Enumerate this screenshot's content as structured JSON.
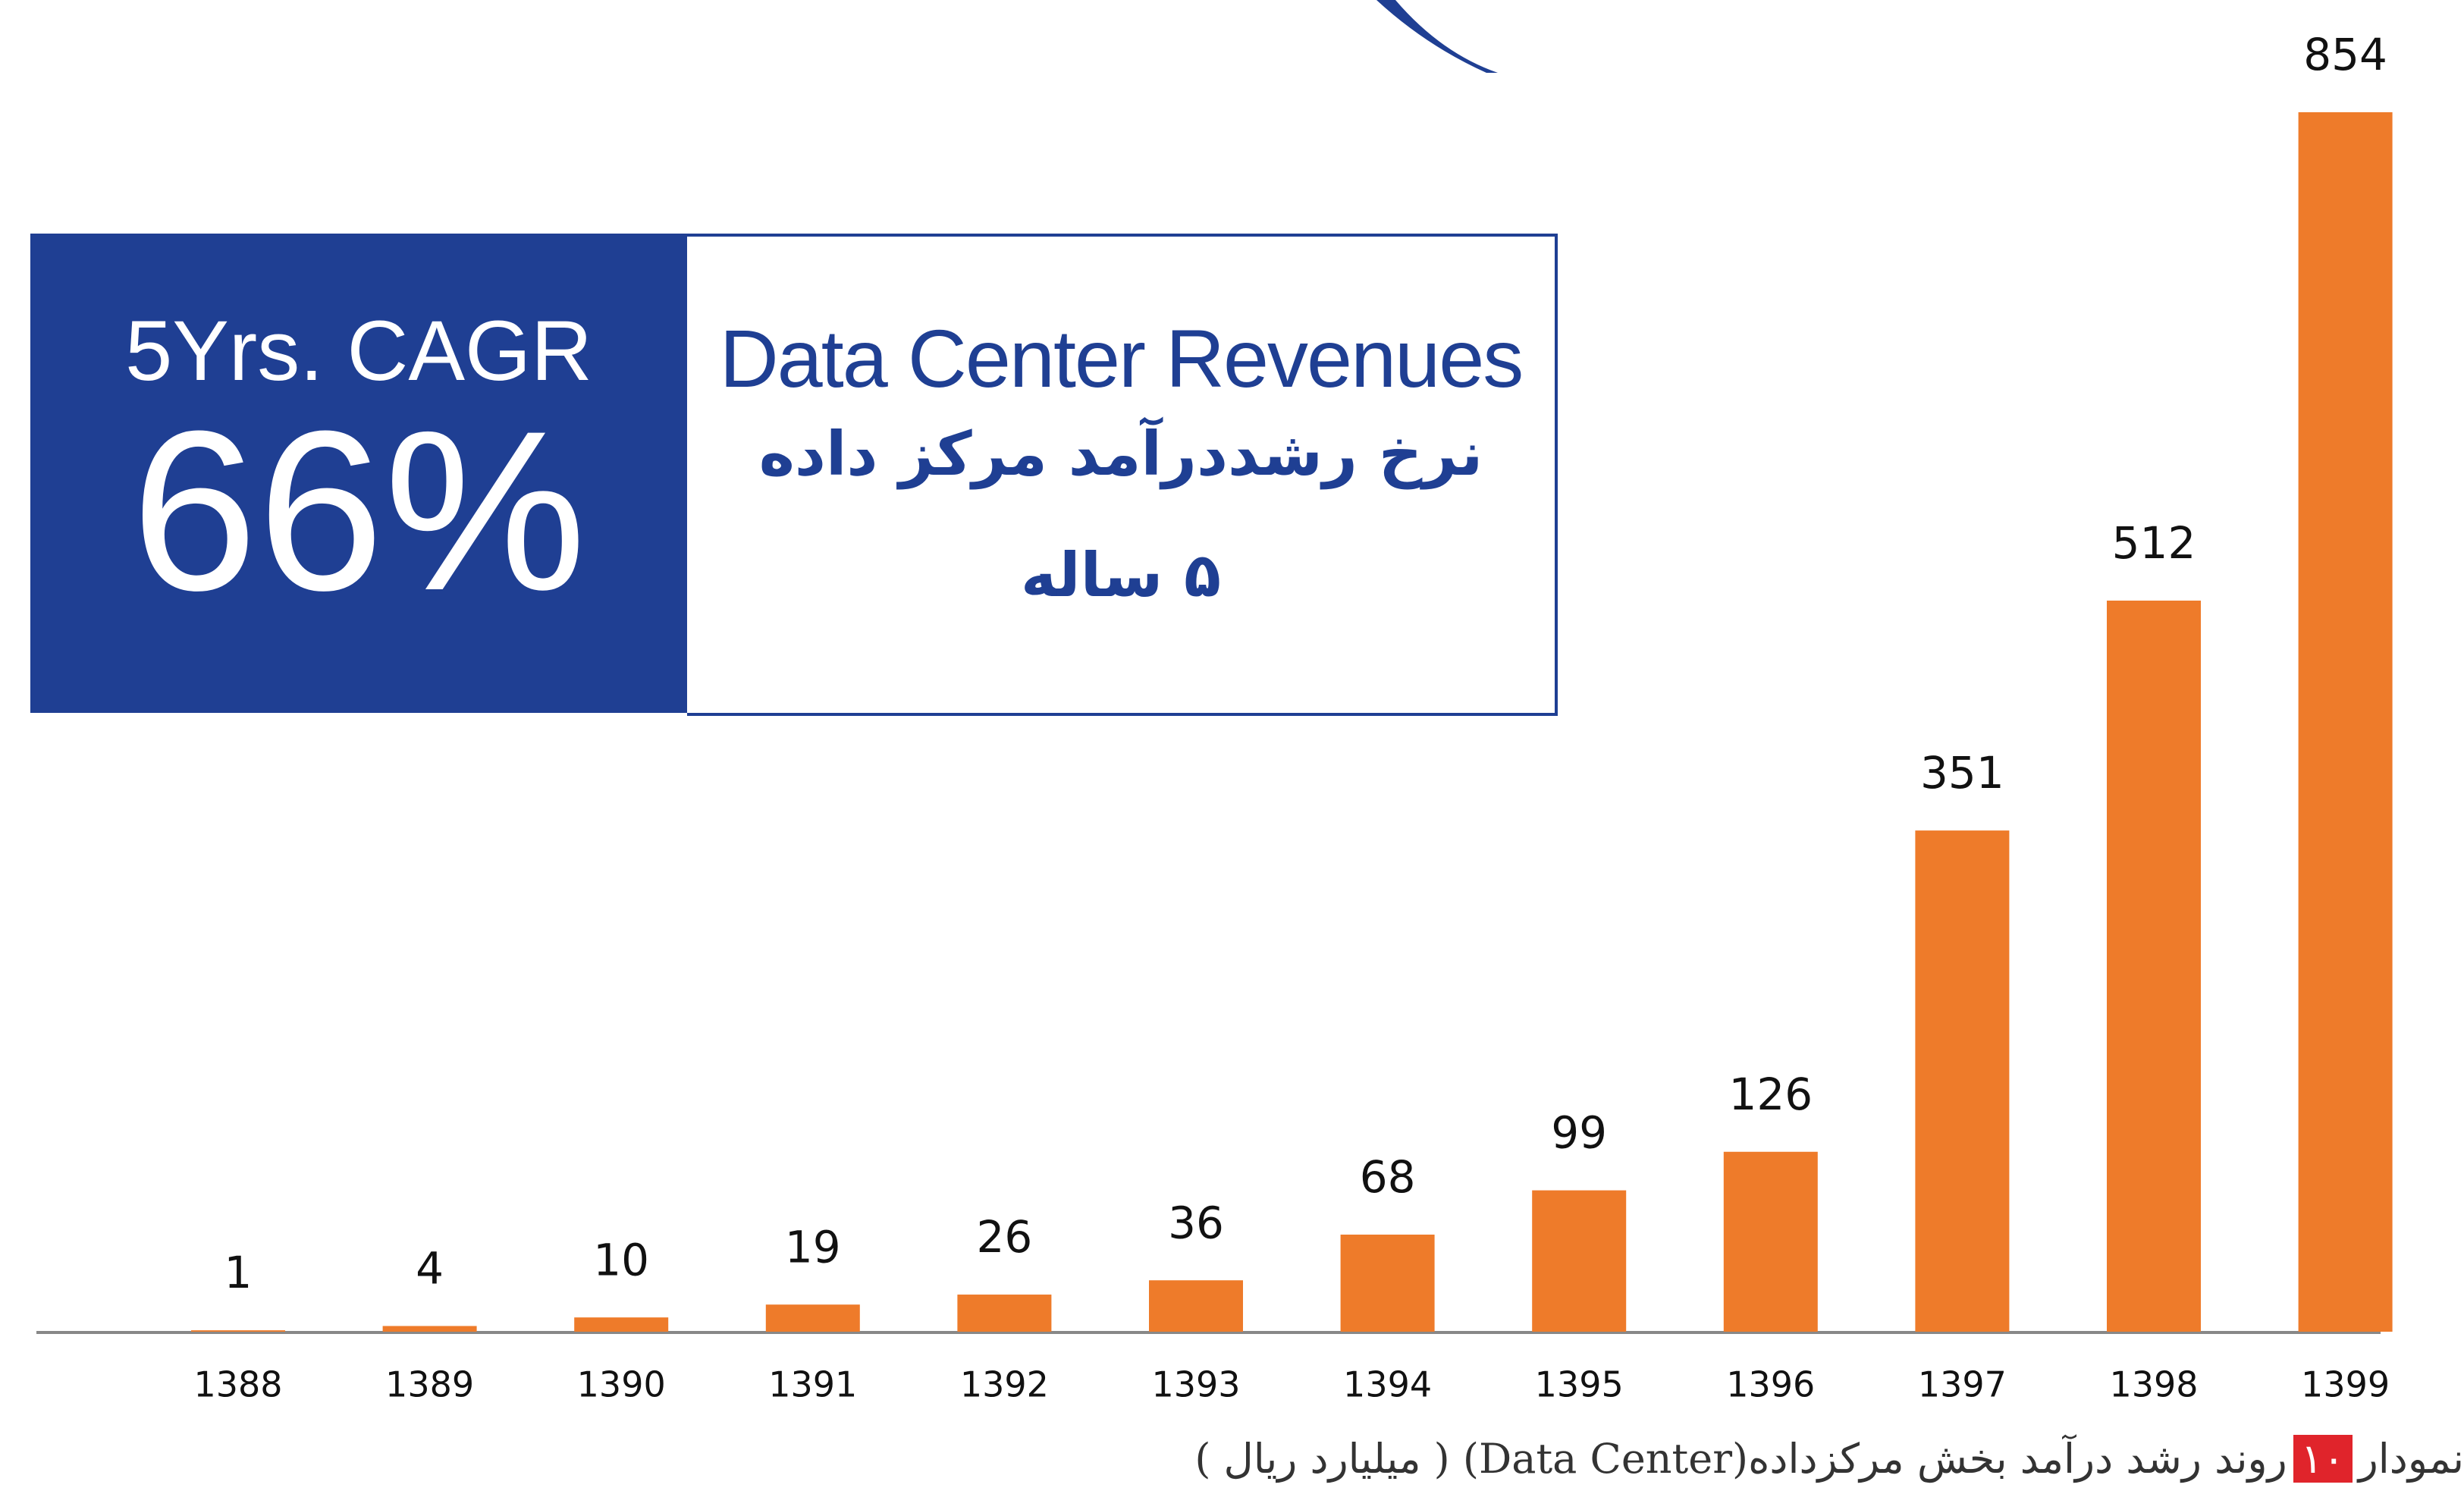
{
  "chart_data": {
    "type": "bar",
    "categories": [
      "1388",
      "1389",
      "1390",
      "1391",
      "1392",
      "1393",
      "1394",
      "1395",
      "1396",
      "1397",
      "1398",
      "1399"
    ],
    "values": [
      1,
      4,
      10,
      19,
      26,
      36,
      68,
      99,
      126,
      351,
      512,
      854
    ],
    "color": "#ee7b2a"
  },
  "info_box": {
    "cagr_label": "5Yrs. CAGR",
    "cagr_value": "66%",
    "title": "Data Center Revenues",
    "subtitle_line1": "نرخ رشددرآمد مرکز داده",
    "subtitle_line2": "۵ ساله"
  },
  "caption": {
    "label": "نمودار",
    "number": "۱۰",
    "text": "روند رشد درآمد بخش مرکزداده(Data Center) ( میلیارد ریال )"
  }
}
